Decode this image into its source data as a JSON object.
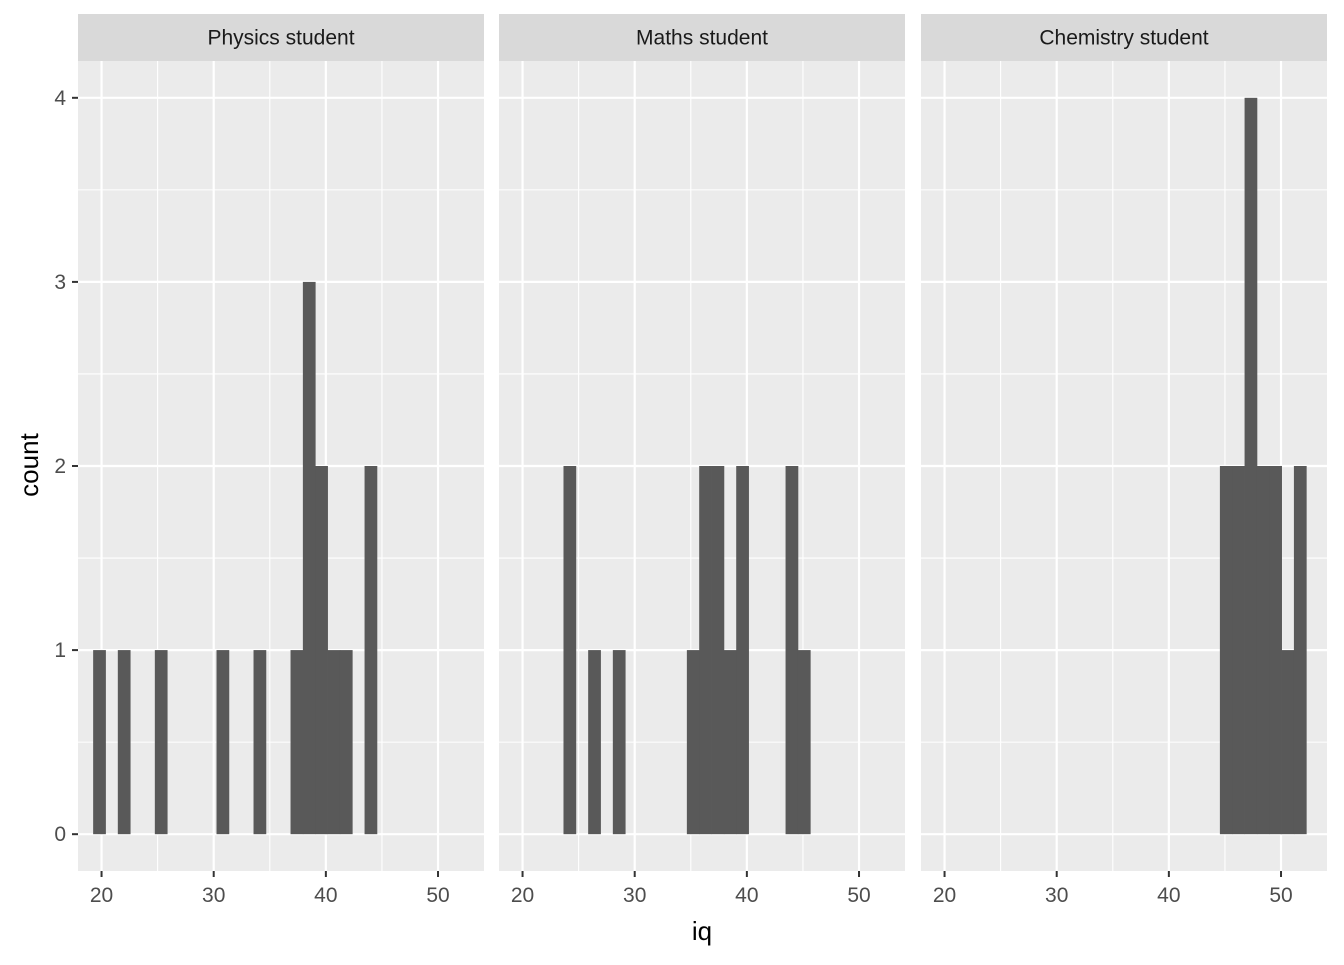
{
  "chart_data": {
    "type": "bar",
    "subtype": "faceted-histogram",
    "xlabel": "iq",
    "ylabel": "count",
    "xlim": [
      17.9,
      54.1
    ],
    "ylim": [
      -0.2,
      4.2
    ],
    "x_ticks": [
      20,
      30,
      40,
      50
    ],
    "y_ticks": [
      0,
      1,
      2,
      3,
      4
    ],
    "bin_width": 1.1,
    "grid": true,
    "bar_color": "#595959",
    "panel_background": "#EBEBEB",
    "strip_background": "#D9D9D9",
    "grid_color": "#FFFFFF",
    "text_color": "#4D4D4D",
    "facets": [
      {
        "label": "Physics student",
        "bins": [
          {
            "x": 19.8,
            "count": 1
          },
          {
            "x": 22.0,
            "count": 1
          },
          {
            "x": 25.3,
            "count": 1
          },
          {
            "x": 30.8,
            "count": 1
          },
          {
            "x": 34.1,
            "count": 1
          },
          {
            "x": 37.4,
            "count": 1
          },
          {
            "x": 38.5,
            "count": 3
          },
          {
            "x": 39.6,
            "count": 2
          },
          {
            "x": 40.7,
            "count": 1
          },
          {
            "x": 41.8,
            "count": 1
          },
          {
            "x": 44.0,
            "count": 2
          }
        ]
      },
      {
        "label": "Maths student",
        "bins": [
          {
            "x": 24.2,
            "count": 2
          },
          {
            "x": 26.4,
            "count": 1
          },
          {
            "x": 28.6,
            "count": 1
          },
          {
            "x": 35.2,
            "count": 1
          },
          {
            "x": 36.3,
            "count": 2
          },
          {
            "x": 37.4,
            "count": 2
          },
          {
            "x": 38.5,
            "count": 1
          },
          {
            "x": 39.6,
            "count": 2
          },
          {
            "x": 44.0,
            "count": 2
          },
          {
            "x": 45.1,
            "count": 1
          }
        ]
      },
      {
        "label": "Chemistry student",
        "bins": [
          {
            "x": 45.1,
            "count": 2
          },
          {
            "x": 46.2,
            "count": 2
          },
          {
            "x": 47.3,
            "count": 4
          },
          {
            "x": 48.4,
            "count": 2
          },
          {
            "x": 49.5,
            "count": 2
          },
          {
            "x": 50.6,
            "count": 1
          },
          {
            "x": 51.7,
            "count": 2
          }
        ]
      }
    ]
  }
}
